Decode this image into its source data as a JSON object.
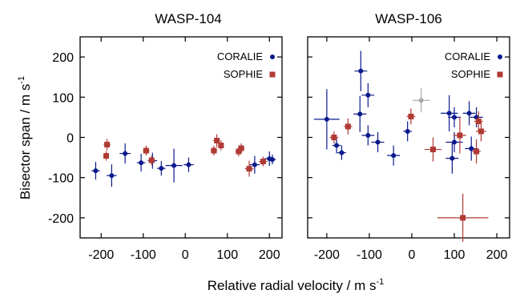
{
  "figure": {
    "ylabel": "Bisector span / m s",
    "ylabel_sup": "-1",
    "xlabel": "Relative radial velocity / m s",
    "xlabel_sup": "-1"
  },
  "chart_data": [
    {
      "type": "scatter",
      "title": "WASP-104",
      "xlim": [
        -250,
        230
      ],
      "ylim": [
        -250,
        250
      ],
      "xticks": [
        -200,
        -100,
        0,
        100,
        200
      ],
      "xtick_labels": [
        "-200",
        "-100",
        "0",
        "100",
        "200"
      ],
      "yticks": [
        -200,
        -100,
        0,
        100,
        200
      ],
      "ytick_labels": [
        "-200",
        "-100",
        "0",
        "100",
        "200"
      ],
      "grid": false,
      "legend_position": "top-right",
      "series": [
        {
          "name": "CORALIE",
          "marker": "circle",
          "color": "#0a1a8c",
          "points": [
            {
              "x": -213,
              "y": -83,
              "xerr": 10,
              "yerr": 22
            },
            {
              "x": -175,
              "y": -95,
              "xerr": 12,
              "yerr": 28
            },
            {
              "x": -143,
              "y": -40,
              "xerr": 13,
              "yerr": 25
            },
            {
              "x": -105,
              "y": -63,
              "xerr": 10,
              "yerr": 22
            },
            {
              "x": -78,
              "y": -58,
              "xerr": 11,
              "yerr": 20
            },
            {
              "x": -57,
              "y": -77,
              "xerr": 10,
              "yerr": 18
            },
            {
              "x": -27,
              "y": -70,
              "xerr": 20,
              "yerr": 42
            },
            {
              "x": 8,
              "y": -68,
              "xerr": 12,
              "yerr": 18
            },
            {
              "x": 165,
              "y": -68,
              "xerr": 12,
              "yerr": 22
            },
            {
              "x": 200,
              "y": -53,
              "xerr": 12,
              "yerr": 18
            },
            {
              "x": 207,
              "y": -55,
              "xerr": 8,
              "yerr": 12
            }
          ]
        },
        {
          "name": "SOPHIE",
          "marker": "square",
          "color": "#b03a34",
          "points": [
            {
              "x": -186,
              "y": -18,
              "xerr": 8,
              "yerr": 14
            },
            {
              "x": -188,
              "y": -46,
              "xerr": 6,
              "yerr": 12
            },
            {
              "x": -93,
              "y": -33,
              "xerr": 8,
              "yerr": 12
            },
            {
              "x": -80,
              "y": -57,
              "xerr": 8,
              "yerr": 12
            },
            {
              "x": 68,
              "y": -33,
              "xerr": 8,
              "yerr": 12
            },
            {
              "x": 75,
              "y": -8,
              "xerr": 8,
              "yerr": 16
            },
            {
              "x": 85,
              "y": -20,
              "xerr": 6,
              "yerr": 12
            },
            {
              "x": 127,
              "y": -35,
              "xerr": 8,
              "yerr": 12
            },
            {
              "x": 133,
              "y": -27,
              "xerr": 8,
              "yerr": 12
            },
            {
              "x": 152,
              "y": -78,
              "xerr": 10,
              "yerr": 20
            },
            {
              "x": 185,
              "y": -60,
              "xerr": 10,
              "yerr": 12
            }
          ]
        }
      ]
    },
    {
      "type": "scatter",
      "title": "WASP-106",
      "xlim": [
        -245,
        230
      ],
      "ylim": [
        -250,
        250
      ],
      "xticks": [
        -200,
        -100,
        0,
        100,
        200
      ],
      "xtick_labels": [
        "-200",
        "-100",
        "0",
        "100",
        "200"
      ],
      "yticks": [
        -200,
        -100,
        0,
        100,
        200
      ],
      "ytick_labels": [],
      "grid": false,
      "legend_position": "top-right",
      "series": [
        {
          "name": "CORALIE",
          "marker": "circle",
          "color": "#0a1a8c",
          "points": [
            {
              "x": -200,
              "y": 45,
              "xerr": 30,
              "yerr": 75
            },
            {
              "x": -177,
              "y": -20,
              "xerr": 10,
              "yerr": 20
            },
            {
              "x": -165,
              "y": -38,
              "xerr": 10,
              "yerr": 18
            },
            {
              "x": -120,
              "y": 165,
              "xerr": 15,
              "yerr": 50
            },
            {
              "x": -122,
              "y": 58,
              "xerr": 15,
              "yerr": 45
            },
            {
              "x": -103,
              "y": 105,
              "xerr": 15,
              "yerr": 30
            },
            {
              "x": -103,
              "y": 5,
              "xerr": 15,
              "yerr": 25
            },
            {
              "x": -80,
              "y": -12,
              "xerr": 15,
              "yerr": 25
            },
            {
              "x": -43,
              "y": -45,
              "xerr": 15,
              "yerr": 25
            },
            {
              "x": -10,
              "y": 15,
              "xerr": 10,
              "yerr": 25
            },
            {
              "x": 88,
              "y": 60,
              "xerr": 20,
              "yerr": 45
            },
            {
              "x": 95,
              "y": -52,
              "xerr": 15,
              "yerr": 38
            },
            {
              "x": 100,
              "y": -12,
              "xerr": 20,
              "yerr": 25
            },
            {
              "x": 100,
              "y": 50,
              "xerr": 15,
              "yerr": 25
            },
            {
              "x": 135,
              "y": 60,
              "xerr": 15,
              "yerr": 30
            },
            {
              "x": 140,
              "y": -28,
              "xerr": 15,
              "yerr": 30
            },
            {
              "x": 152,
              "y": 50,
              "xerr": 15,
              "yerr": 25
            }
          ]
        },
        {
          "name": "SOPHIE",
          "marker": "square",
          "color": "#b03a34",
          "points": [
            {
              "x": -183,
              "y": 0,
              "xerr": 10,
              "yerr": 15
            },
            {
              "x": -150,
              "y": 27,
              "xerr": 10,
              "yerr": 20
            },
            {
              "x": -2,
              "y": 52,
              "xerr": 10,
              "yerr": 20
            },
            {
              "x": 50,
              "y": -30,
              "xerr": 20,
              "yerr": 30
            },
            {
              "x": 120,
              "y": -200,
              "xerr": 60,
              "yerr": 60
            },
            {
              "x": 113,
              "y": 5,
              "xerr": 15,
              "yerr": 45
            },
            {
              "x": 152,
              "y": -35,
              "xerr": 10,
              "yerr": 30
            },
            {
              "x": 157,
              "y": 40,
              "xerr": 10,
              "yerr": 25
            },
            {
              "x": 163,
              "y": 15,
              "xerr": 12,
              "yerr": 25
            }
          ]
        },
        {
          "name": "",
          "marker": "circle",
          "color": "#a8a8a8",
          "points": [
            {
              "x": 22,
              "y": 92,
              "xerr": 20,
              "yerr": 30
            }
          ]
        }
      ]
    }
  ]
}
